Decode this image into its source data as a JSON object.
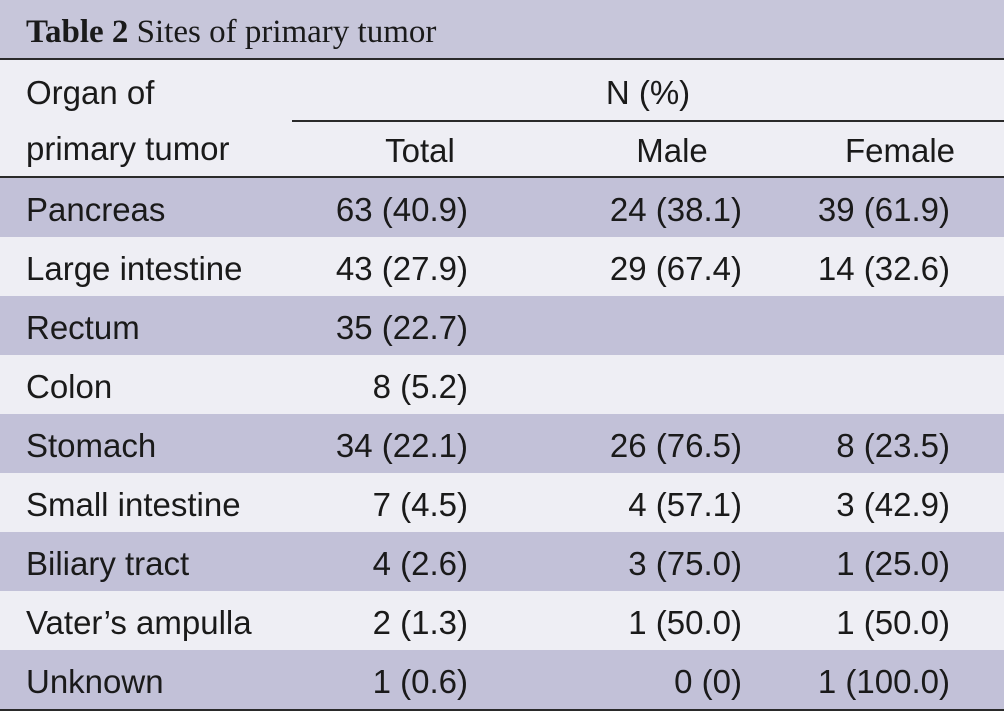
{
  "caption": {
    "label": "Table 2",
    "text": "Sites of primary tumor"
  },
  "header": {
    "organ_line1": "Organ of",
    "organ_line2": "primary tumor",
    "group": "N (%)",
    "total": "Total",
    "male": "Male",
    "female": "Female"
  },
  "rows": [
    {
      "organ": "Pancreas",
      "total": "63 (40.9)",
      "male": "24 (38.1)",
      "female": "39 (61.9)"
    },
    {
      "organ": "Large intestine",
      "total": "43 (27.9)",
      "male": "29 (67.4)",
      "female": "14 (32.6)"
    },
    {
      "organ": "Rectum",
      "total": "35 (22.7)",
      "male": "",
      "female": ""
    },
    {
      "organ": "Colon",
      "total": "8 (5.2)",
      "male": "",
      "female": ""
    },
    {
      "organ": "Stomach",
      "total": "34 (22.1)",
      "male": "26 (76.5)",
      "female": "8 (23.5)"
    },
    {
      "organ": "Small intestine",
      "total": "7 (4.5)",
      "male": "4 (57.1)",
      "female": "3 (42.9)"
    },
    {
      "organ": "Biliary tract",
      "total": "4 (2.6)",
      "male": "3 (75.0)",
      "female": "1 (25.0)"
    },
    {
      "organ": "Vater’s ampulla",
      "total": "2 (1.3)",
      "male": "1 (50.0)",
      "female": "1 (50.0)"
    },
    {
      "organ": "Unknown",
      "total": "1 (0.6)",
      "male": "0 (0)",
      "female": "1 (100.0)"
    }
  ]
}
